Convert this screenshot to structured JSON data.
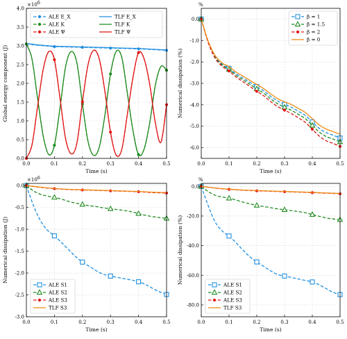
{
  "chart_data": [
    {
      "type": "line",
      "xlabel": "Time (s)",
      "ylabel": "Global energy component (J)",
      "multiplier": "×10",
      "multiplier_exp": "6",
      "xlim": [
        0,
        0.5
      ],
      "ylim": [
        0,
        4
      ],
      "xticks": [
        "0.0",
        "0.1",
        "0.2",
        "0.3",
        "0.4",
        "0.5"
      ],
      "yticks": [
        "0.0",
        "0.5",
        "1.0",
        "1.5",
        "2.0",
        "2.5",
        "3.0",
        "3.5",
        "4.0"
      ],
      "grid": true,
      "legend": "top, 2 columns",
      "series": [
        {
          "name": "ALE E_X",
          "color": "#1f8fe0",
          "style": "dashed",
          "marker": "dot",
          "x": [
            0,
            0.05,
            0.1,
            0.15,
            0.2,
            0.25,
            0.3,
            0.35,
            0.4,
            0.45,
            0.5
          ],
          "y": [
            3.05,
            3.01,
            2.98,
            2.97,
            2.96,
            2.95,
            2.94,
            2.93,
            2.92,
            2.9,
            2.88
          ]
        },
        {
          "name": "TLF E_X",
          "color": "#1f8fe0",
          "style": "solid",
          "marker": "none",
          "x": [
            0,
            0.05,
            0.1,
            0.15,
            0.2,
            0.25,
            0.3,
            0.35,
            0.4,
            0.45,
            0.5
          ],
          "y": [
            3.06,
            3.02,
            2.99,
            2.98,
            2.97,
            2.96,
            2.95,
            2.94,
            2.93,
            2.91,
            2.89
          ]
        },
        {
          "name": "ALE K",
          "color": "#1e8a1e",
          "style": "dashed",
          "marker": "dot",
          "x": [
            0,
            0.02,
            0.04,
            0.06,
            0.08,
            0.1,
            0.12,
            0.14,
            0.16,
            0.18,
            0.2,
            0.22,
            0.24,
            0.26,
            0.28,
            0.3,
            0.32,
            0.34,
            0.36,
            0.38,
            0.4,
            0.42,
            0.44,
            0.46,
            0.48,
            0.5
          ],
          "y": [
            3.05,
            2.65,
            1.6,
            0.6,
            0.1,
            0.35,
            1.35,
            2.45,
            2.85,
            2.55,
            1.45,
            0.45,
            0.08,
            0.3,
            1.15,
            2.25,
            2.85,
            2.7,
            1.75,
            0.75,
            0.1,
            0.25,
            0.95,
            1.95,
            2.45,
            2.35
          ]
        },
        {
          "name": "TLF K",
          "color": "#1e8a1e",
          "style": "solid",
          "marker": "none",
          "x": [
            0,
            0.02,
            0.04,
            0.06,
            0.08,
            0.1,
            0.12,
            0.14,
            0.16,
            0.18,
            0.2,
            0.22,
            0.24,
            0.26,
            0.28,
            0.3,
            0.32,
            0.34,
            0.36,
            0.38,
            0.4,
            0.42,
            0.44,
            0.46,
            0.48,
            0.5
          ],
          "y": [
            3.05,
            2.65,
            1.6,
            0.6,
            0.1,
            0.35,
            1.35,
            2.45,
            2.85,
            2.55,
            1.45,
            0.45,
            0.08,
            0.3,
            1.15,
            2.25,
            2.85,
            2.7,
            1.75,
            0.75,
            0.1,
            0.25,
            0.95,
            1.95,
            2.45,
            2.35
          ]
        },
        {
          "name": "ALE Ψ",
          "color": "#e01515",
          "style": "dashed",
          "marker": "dot",
          "x": [
            0,
            0.02,
            0.04,
            0.06,
            0.08,
            0.1,
            0.12,
            0.14,
            0.16,
            0.18,
            0.2,
            0.22,
            0.24,
            0.26,
            0.28,
            0.3,
            0.32,
            0.34,
            0.36,
            0.38,
            0.4,
            0.42,
            0.44,
            0.46,
            0.48,
            0.5
          ],
          "y": [
            0.0,
            0.36,
            1.38,
            2.37,
            2.85,
            2.63,
            1.6,
            0.52,
            0.12,
            0.4,
            1.51,
            2.5,
            2.88,
            2.65,
            1.79,
            0.7,
            0.09,
            0.23,
            1.17,
            2.15,
            2.82,
            2.65,
            1.97,
            0.95,
            0.43,
            1.43
          ]
        },
        {
          "name": "TLF Ψ",
          "color": "#e01515",
          "style": "solid",
          "marker": "none",
          "x": [
            0,
            0.02,
            0.04,
            0.06,
            0.08,
            0.1,
            0.12,
            0.14,
            0.16,
            0.18,
            0.2,
            0.22,
            0.24,
            0.26,
            0.28,
            0.3,
            0.32,
            0.34,
            0.36,
            0.38,
            0.4,
            0.42,
            0.44,
            0.46,
            0.48,
            0.5
          ],
          "y": [
            0.0,
            0.36,
            1.38,
            2.37,
            2.85,
            2.63,
            1.6,
            0.52,
            0.12,
            0.4,
            1.51,
            2.5,
            2.88,
            2.65,
            1.79,
            0.7,
            0.09,
            0.23,
            1.17,
            2.15,
            2.82,
            2.65,
            1.97,
            0.95,
            0.43,
            1.43
          ]
        }
      ]
    },
    {
      "type": "line",
      "xlabel": "Time (s)",
      "ylabel": "Numerical dissipation (%)",
      "unit_label": "%",
      "xlim": [
        0,
        0.5
      ],
      "ylim": [
        -6.5,
        0.5
      ],
      "xticks": [
        "0.0",
        "0.1",
        "0.2",
        "0.3",
        "0.4",
        "0.5"
      ],
      "yticks": [
        "0.0",
        "-1.0",
        "-2.0",
        "-3.0",
        "-4.0",
        "-5.0",
        "-6.0"
      ],
      "grid": true,
      "legend": "top-right",
      "series": [
        {
          "name": "β = 1",
          "color": "#1f8fe0",
          "style": "dashed",
          "marker": "square",
          "x": [
            0,
            0.025,
            0.05,
            0.075,
            0.1,
            0.125,
            0.15,
            0.175,
            0.2,
            0.225,
            0.25,
            0.275,
            0.3,
            0.325,
            0.35,
            0.375,
            0.4,
            0.425,
            0.45,
            0.475,
            0.5
          ],
          "y": [
            0.0,
            -1.05,
            -1.75,
            -2.1,
            -2.3,
            -2.55,
            -2.75,
            -2.95,
            -3.15,
            -3.35,
            -3.6,
            -3.82,
            -3.98,
            -4.12,
            -4.3,
            -4.5,
            -4.8,
            -5.1,
            -5.3,
            -5.42,
            -5.55
          ]
        },
        {
          "name": "β = 1.5",
          "color": "#1e8a1e",
          "style": "dashed",
          "marker": "triangle",
          "x": [
            0,
            0.025,
            0.05,
            0.075,
            0.1,
            0.125,
            0.15,
            0.175,
            0.2,
            0.225,
            0.25,
            0.275,
            0.3,
            0.325,
            0.35,
            0.375,
            0.4,
            0.425,
            0.45,
            0.475,
            0.5
          ],
          "y": [
            0.0,
            -1.07,
            -1.79,
            -2.15,
            -2.35,
            -2.62,
            -2.83,
            -3.04,
            -3.26,
            -3.46,
            -3.72,
            -3.95,
            -4.11,
            -4.26,
            -4.45,
            -4.65,
            -4.96,
            -5.27,
            -5.48,
            -5.6,
            -5.73
          ]
        },
        {
          "name": "β = 2",
          "color": "#e01515",
          "style": "dashed",
          "marker": "dot",
          "x": [
            0,
            0.025,
            0.05,
            0.075,
            0.1,
            0.125,
            0.15,
            0.175,
            0.2,
            0.225,
            0.25,
            0.275,
            0.3,
            0.325,
            0.35,
            0.375,
            0.4,
            0.425,
            0.45,
            0.475,
            0.5
          ],
          "y": [
            0.0,
            -1.1,
            -1.83,
            -2.2,
            -2.42,
            -2.7,
            -2.92,
            -3.14,
            -3.37,
            -3.58,
            -3.85,
            -4.08,
            -4.25,
            -4.41,
            -4.61,
            -4.82,
            -5.14,
            -5.46,
            -5.68,
            -5.8,
            -5.94
          ]
        },
        {
          "name": "β = 0",
          "color": "#f08a12",
          "style": "solid",
          "marker": "none",
          "x": [
            0,
            0.025,
            0.05,
            0.075,
            0.1,
            0.125,
            0.15,
            0.175,
            0.2,
            0.225,
            0.25,
            0.275,
            0.3,
            0.325,
            0.35,
            0.375,
            0.4,
            0.425,
            0.45,
            0.475,
            0.5
          ],
          "y": [
            0.0,
            -1.03,
            -1.7,
            -2.05,
            -2.22,
            -2.47,
            -2.66,
            -2.86,
            -3.05,
            -3.25,
            -3.49,
            -3.71,
            -3.86,
            -3.99,
            -4.17,
            -4.36,
            -4.65,
            -4.94,
            -5.13,
            -5.25,
            -5.37
          ]
        }
      ]
    },
    {
      "type": "line",
      "xlabel": "Time (s)",
      "ylabel": "Numerical dissipation (J)",
      "multiplier": "×10",
      "multiplier_exp": "6",
      "xlim": [
        0,
        0.5
      ],
      "ylim": [
        -3.0,
        0.05
      ],
      "xticks": [
        "0.0",
        "0.1",
        "0.2",
        "0.3",
        "0.4",
        "0.5"
      ],
      "yticks": [
        "0.0",
        "-0.5",
        "-1.0",
        "-1.5",
        "-2.0",
        "-2.5",
        "-3.0"
      ],
      "grid": true,
      "legend": "bottom-left",
      "series": [
        {
          "name": "ALE S1",
          "color": "#1f8fe0",
          "style": "dashed",
          "marker": "square",
          "x": [
            0,
            0.025,
            0.05,
            0.075,
            0.1,
            0.125,
            0.15,
            0.175,
            0.2,
            0.225,
            0.25,
            0.275,
            0.3,
            0.325,
            0.35,
            0.375,
            0.4,
            0.425,
            0.45,
            0.475,
            0.5
          ],
          "y": [
            0.0,
            -0.45,
            -0.8,
            -1.02,
            -1.15,
            -1.3,
            -1.46,
            -1.62,
            -1.75,
            -1.85,
            -1.95,
            -2.03,
            -2.07,
            -2.1,
            -2.13,
            -2.16,
            -2.2,
            -2.26,
            -2.35,
            -2.43,
            -2.49
          ]
        },
        {
          "name": "ALE S2",
          "color": "#1e8a1e",
          "style": "dashed",
          "marker": "triangle",
          "x": [
            0,
            0.025,
            0.05,
            0.075,
            0.1,
            0.125,
            0.15,
            0.175,
            0.2,
            0.225,
            0.25,
            0.275,
            0.3,
            0.325,
            0.35,
            0.375,
            0.4,
            0.425,
            0.45,
            0.475,
            0.5
          ],
          "y": [
            0.0,
            -0.12,
            -0.2,
            -0.24,
            -0.27,
            -0.31,
            -0.36,
            -0.4,
            -0.43,
            -0.46,
            -0.48,
            -0.51,
            -0.53,
            -0.55,
            -0.57,
            -0.6,
            -0.64,
            -0.68,
            -0.71,
            -0.73,
            -0.75
          ]
        },
        {
          "name": "ALE S3",
          "color": "#e01515",
          "style": "dashed",
          "marker": "dot",
          "x": [
            0,
            0.05,
            0.1,
            0.15,
            0.2,
            0.25,
            0.3,
            0.35,
            0.4,
            0.45,
            0.5
          ],
          "y": [
            0.0,
            -0.04,
            -0.07,
            -0.09,
            -0.1,
            -0.11,
            -0.12,
            -0.13,
            -0.14,
            -0.16,
            -0.17
          ]
        },
        {
          "name": "TLF S3",
          "color": "#f08a12",
          "style": "solid",
          "marker": "none",
          "x": [
            0,
            0.05,
            0.1,
            0.15,
            0.2,
            0.25,
            0.3,
            0.35,
            0.4,
            0.45,
            0.5
          ],
          "y": [
            0.0,
            -0.035,
            -0.065,
            -0.085,
            -0.095,
            -0.105,
            -0.115,
            -0.125,
            -0.135,
            -0.15,
            -0.16
          ]
        }
      ]
    },
    {
      "type": "line",
      "xlabel": "Time (s)",
      "ylabel": "Numerical dissipation (%)",
      "unit_label": "%",
      "xlim": [
        0,
        0.5
      ],
      "ylim": [
        -88,
        2
      ],
      "xticks": [
        "0.0",
        "0.1",
        "0.2",
        "0.3",
        "0.4",
        "0.5"
      ],
      "yticks": [
        "0.0",
        "-20.0",
        "-40.0",
        "-60.0",
        "-80.0"
      ],
      "grid": true,
      "legend": "bottom-left",
      "series": [
        {
          "name": "ALE S1",
          "color": "#1f8fe0",
          "style": "dashed",
          "marker": "square",
          "x": [
            0,
            0.025,
            0.05,
            0.075,
            0.1,
            0.125,
            0.15,
            0.175,
            0.2,
            0.225,
            0.25,
            0.275,
            0.3,
            0.325,
            0.35,
            0.375,
            0.4,
            0.425,
            0.45,
            0.475,
            0.5
          ],
          "y": [
            0.0,
            -13.0,
            -24.0,
            -30.0,
            -33.5,
            -38.0,
            -43.0,
            -47.5,
            -51.0,
            -54.0,
            -57.0,
            -59.5,
            -60.5,
            -61.5,
            -62.5,
            -63.5,
            -64.5,
            -66.5,
            -69.0,
            -71.5,
            -73.0
          ]
        },
        {
          "name": "ALE S2",
          "color": "#1e8a1e",
          "style": "dashed",
          "marker": "triangle",
          "x": [
            0,
            0.025,
            0.05,
            0.075,
            0.1,
            0.125,
            0.15,
            0.175,
            0.2,
            0.225,
            0.25,
            0.275,
            0.3,
            0.325,
            0.35,
            0.375,
            0.4,
            0.425,
            0.45,
            0.475,
            0.5
          ],
          "y": [
            0.0,
            -3.5,
            -6.0,
            -7.2,
            -8.0,
            -9.2,
            -10.6,
            -11.8,
            -12.8,
            -13.6,
            -14.4,
            -15.2,
            -15.8,
            -16.4,
            -17.0,
            -17.8,
            -19.0,
            -20.2,
            -21.3,
            -22.0,
            -22.5
          ]
        },
        {
          "name": "ALE S3",
          "color": "#e01515",
          "style": "dashed",
          "marker": "dot",
          "x": [
            0,
            0.05,
            0.1,
            0.15,
            0.2,
            0.25,
            0.3,
            0.35,
            0.4,
            0.45,
            0.5
          ],
          "y": [
            0.0,
            -1.2,
            -2.0,
            -2.6,
            -3.0,
            -3.3,
            -3.6,
            -3.9,
            -4.2,
            -4.6,
            -5.0
          ]
        },
        {
          "name": "TLF S3",
          "color": "#f08a12",
          "style": "solid",
          "marker": "none",
          "x": [
            0,
            0.05,
            0.1,
            0.15,
            0.2,
            0.25,
            0.3,
            0.35,
            0.4,
            0.45,
            0.5
          ],
          "y": [
            0.0,
            -1.1,
            -1.9,
            -2.45,
            -2.85,
            -3.15,
            -3.45,
            -3.75,
            -4.05,
            -4.45,
            -4.8
          ]
        }
      ]
    }
  ]
}
